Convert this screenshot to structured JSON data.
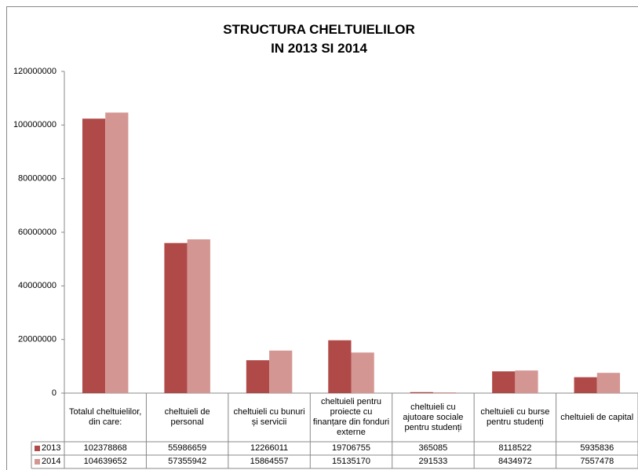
{
  "chart_data": {
    "type": "bar",
    "title": [
      "STRUCTURA CHELTUIELILOR",
      "IN 2013 SI 2014"
    ],
    "categories": [
      "Totalul cheltuielilor, din care:",
      "cheltuieli de personal",
      "cheltuieli cu bunuri și servicii",
      "cheltuieli pentru proiecte cu finanțare din fonduri externe",
      "cheltuieli cu ajutoare sociale pentru studenți",
      "cheltuieli cu burse pentru studenți",
      "cheltuieli de capital"
    ],
    "series": [
      {
        "name": "2013",
        "color": "#b04a48",
        "values": [
          102378868,
          55986659,
          12266011,
          19706755,
          365085,
          8118522,
          5935836
        ]
      },
      {
        "name": "2014",
        "color": "#d49693",
        "values": [
          104639652,
          57355942,
          15864557,
          15135170,
          291533,
          8434972,
          7557478
        ]
      }
    ],
    "ylim": [
      0,
      120000000
    ],
    "yticks": [
      0,
      20000000,
      40000000,
      60000000,
      80000000,
      100000000,
      120000000
    ],
    "grid": false
  }
}
